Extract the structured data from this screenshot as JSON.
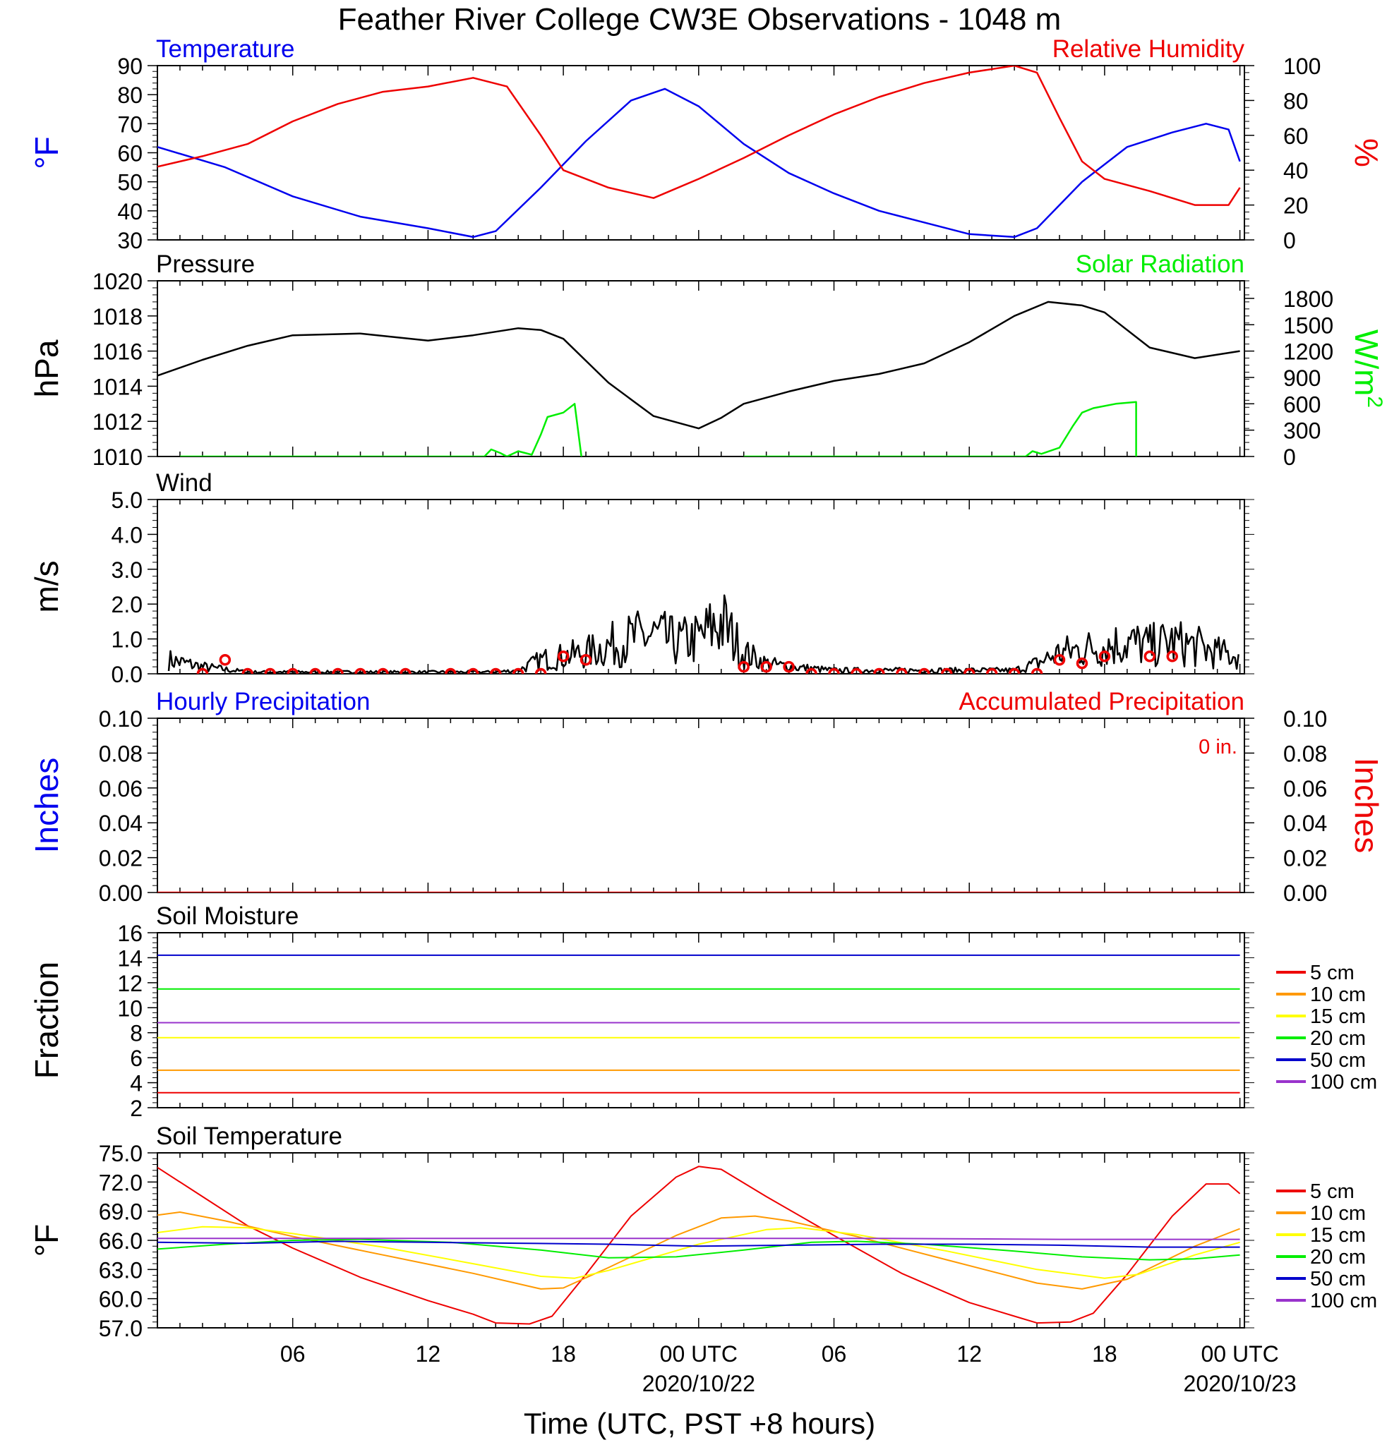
{
  "title": "Feather River College CW3E Observations - 1048 m",
  "colors": {
    "blue": "#0000ee",
    "red": "#ee0000",
    "green": "#00ee00",
    "black": "#000000"
  },
  "chart_data": [
    {
      "type": "line",
      "left_title": "Temperature",
      "right_title": "Relative Humidity",
      "ylabel": "°F",
      "ylabel_right": "%",
      "ylim": [
        30,
        90
      ],
      "ylim_right": [
        0,
        100
      ],
      "yticks": [
        "30",
        "40",
        "50",
        "60",
        "70",
        "80",
        "90"
      ],
      "yticks_right": [
        "0",
        "20",
        "40",
        "60",
        "80",
        "100"
      ],
      "series": [
        {
          "axis": "left",
          "color": "#0000ee",
          "x": [
            0,
            3,
            6,
            9,
            12,
            14,
            15,
            17,
            19,
            21,
            22.5,
            24,
            26,
            28,
            30,
            32,
            34,
            36,
            38,
            39,
            41,
            43,
            45,
            46.5,
            47.5,
            48
          ],
          "y": [
            62,
            55,
            45,
            38,
            34,
            31,
            33,
            48,
            64,
            78,
            82,
            76,
            63,
            53,
            46,
            40,
            36,
            32,
            31,
            34,
            50,
            62,
            67,
            70,
            68,
            57
          ]
        },
        {
          "axis": "right",
          "color": "#ee0000",
          "x": [
            0,
            2,
            4,
            6,
            8,
            10,
            12,
            14,
            15.5,
            17,
            18,
            20,
            22,
            24,
            26,
            28,
            30,
            32,
            34,
            36,
            38,
            39,
            40,
            41,
            42,
            44,
            46,
            47.5,
            48
          ],
          "y": [
            42,
            48,
            55,
            68,
            78,
            85,
            88,
            93,
            88,
            60,
            40,
            30,
            24,
            35,
            47,
            60,
            72,
            82,
            90,
            96,
            100,
            96,
            70,
            45,
            35,
            28,
            20,
            20,
            30
          ]
        }
      ]
    },
    {
      "type": "line",
      "left_title": "Pressure",
      "right_title": "Solar Radiation",
      "ylabel": "hPa",
      "ylabel_right": "W/m",
      "ylabel_right_sup": "2",
      "ylim": [
        1010,
        1020
      ],
      "ylim_right": [
        0,
        2000
      ],
      "yticks": [
        "1010",
        "1012",
        "1014",
        "1016",
        "1018",
        "1020"
      ],
      "yticks_right": [
        "0",
        "300",
        "600",
        "900",
        "1200",
        "1500",
        "1800"
      ],
      "series": [
        {
          "axis": "left",
          "color": "#000000",
          "x": [
            0,
            2,
            4,
            6,
            9,
            12,
            14,
            16,
            17,
            18,
            20,
            22,
            24,
            25,
            26,
            28,
            30,
            32,
            34,
            36,
            38,
            39.5,
            41,
            42,
            44,
            46,
            48
          ],
          "y": [
            1014.6,
            1015.5,
            1016.3,
            1016.9,
            1017.0,
            1016.6,
            1016.9,
            1017.3,
            1017.2,
            1016.7,
            1014.2,
            1012.3,
            1011.6,
            1012.2,
            1013.0,
            1013.7,
            1014.3,
            1014.7,
            1015.3,
            1016.5,
            1018.0,
            1018.8,
            1018.6,
            1018.2,
            1016.2,
            1015.6,
            1016.0
          ]
        },
        {
          "axis": "right",
          "color": "#00ee00",
          "x": [
            1,
            14.5,
            14.8,
            15.2,
            15.5,
            16,
            16.6,
            17,
            17.3,
            18,
            18.5,
            18.8,
            17.5,
            17.5,
            17.5,
            17.5,
            17.5,
            17.5,
            17.5,
            17.5,
            17.5,
            17.5,
            17.5,
            17.5,
            17.5,
            17.5,
            17.5,
            17.5,
            17.5,
            17.5
          ],
          "y": [
            0,
            0,
            80,
            40,
            0,
            60,
            20,
            250,
            450,
            500,
            600,
            0,
            null,
            null,
            null,
            null,
            null,
            null,
            null,
            null,
            null,
            null,
            null,
            null,
            null,
            null,
            null,
            null,
            null,
            null
          ]
        },
        {
          "axis": "right",
          "color": "#00ee00",
          "x": [
            26,
            38.5,
            38.8,
            39.2,
            40,
            40.6,
            41,
            41.5,
            42.5,
            43.4,
            43.4
          ],
          "y": [
            0,
            0,
            60,
            30,
            100,
            350,
            500,
            550,
            600,
            620,
            0
          ]
        }
      ]
    },
    {
      "type": "line",
      "left_title": "Wind",
      "ylabel": "m/s",
      "ylim": [
        0,
        5
      ],
      "yticks": [
        "0.0",
        "1.0",
        "2.0",
        "3.0",
        "4.0",
        "5.0"
      ],
      "series": [
        {
          "name": "",
          "axis": "left",
          "color": "#000000",
          "style": "noisy",
          "x": [
            0.5,
            2,
            4,
            6,
            8,
            10,
            12,
            15,
            16,
            17,
            18,
            19,
            20,
            21,
            22,
            23,
            24,
            25,
            26,
            27,
            28,
            30,
            32,
            34,
            36,
            38,
            39,
            40,
            41,
            42,
            43,
            44,
            45,
            46,
            47,
            48
          ],
          "y": [
            0.4,
            0.2,
            0.05,
            0.05,
            0.05,
            0.05,
            0.05,
            0.05,
            0.1,
            0.4,
            0.5,
            0.6,
            0.8,
            1.0,
            1.1,
            0.9,
            1.0,
            1.5,
            0.6,
            0.3,
            0.2,
            0.1,
            0.1,
            0.1,
            0.1,
            0.1,
            0.3,
            0.6,
            0.7,
            0.8,
            0.9,
            0.8,
            0.9,
            0.8,
            0.6,
            0.5
          ]
        }
      ],
      "wind_circles_x": [
        2,
        3,
        4,
        5,
        6,
        7,
        8,
        9,
        10,
        11,
        13,
        14,
        15,
        16,
        17,
        18,
        19,
        26,
        27,
        28,
        29,
        30,
        31,
        32,
        33,
        34,
        35,
        36,
        37,
        38,
        39,
        40,
        41,
        42,
        44,
        45
      ],
      "wind_circles_y": [
        0,
        0.4,
        0,
        0,
        0,
        0,
        0,
        0,
        0,
        0,
        0,
        0,
        0,
        0,
        0,
        0.5,
        0.4,
        0.2,
        0.2,
        0.2,
        0,
        0,
        0,
        0,
        0,
        0,
        0,
        0,
        0,
        0,
        0,
        0.4,
        0.3,
        0.5,
        0.5,
        0.5
      ]
    },
    {
      "type": "line",
      "left_title": "Hourly Precipitation",
      "right_title": "Accumulated Precipitation",
      "annotation": "0 in.",
      "ylabel": "Inches",
      "ylabel_right": "Inches",
      "ylim": [
        0,
        0.1
      ],
      "ylim_right": [
        0,
        0.1
      ],
      "yticks": [
        "0.00",
        "0.02",
        "0.04",
        "0.06",
        "0.08",
        "0.10"
      ],
      "yticks_right": [
        "0.00",
        "0.02",
        "0.04",
        "0.06",
        "0.08",
        "0.10"
      ],
      "series": [
        {
          "axis": "right",
          "color": "#ee0000",
          "x": [
            0,
            48
          ],
          "y": [
            0,
            0
          ]
        }
      ]
    },
    {
      "type": "line",
      "left_title": "Soil Moisture",
      "ylabel": "Fraction",
      "ylim": [
        2,
        16
      ],
      "yticks": [
        "2",
        "4",
        "6",
        "8",
        "10",
        "12",
        "14",
        "16"
      ],
      "legend": [
        "5 cm",
        "10 cm",
        "15 cm",
        "20 cm",
        "50 cm",
        "100 cm"
      ],
      "legend_colors": [
        "#ee0000",
        "#ff9900",
        "#ffff00",
        "#00ee00",
        "#0000cc",
        "#9933cc"
      ],
      "series": [
        {
          "name": "5 cm",
          "color": "#ee0000",
          "x": [
            0,
            48
          ],
          "y": [
            3.2,
            3.2
          ]
        },
        {
          "name": "10 cm",
          "color": "#ff9900",
          "x": [
            0,
            48
          ],
          "y": [
            5.0,
            5.0
          ]
        },
        {
          "name": "15 cm",
          "color": "#ffff00",
          "x": [
            0,
            48
          ],
          "y": [
            7.6,
            7.6
          ]
        },
        {
          "name": "20 cm",
          "color": "#00ee00",
          "x": [
            0,
            48
          ],
          "y": [
            11.5,
            11.5
          ]
        },
        {
          "name": "50 cm",
          "color": "#0000cc",
          "x": [
            0,
            48
          ],
          "y": [
            14.2,
            14.2
          ]
        },
        {
          "name": "100 cm",
          "color": "#9933cc",
          "x": [
            0,
            48
          ],
          "y": [
            8.8,
            8.8
          ]
        }
      ]
    },
    {
      "type": "line",
      "left_title": "Soil Temperature",
      "ylabel": "°F",
      "ylim": [
        57,
        75
      ],
      "yticks": [
        "57.0",
        "60.0",
        "63.0",
        "66.0",
        "69.0",
        "72.0",
        "75.0"
      ],
      "legend": [
        "5 cm",
        "10 cm",
        "15 cm",
        "20 cm",
        "50 cm",
        "100 cm"
      ],
      "legend_colors": [
        "#ee0000",
        "#ff9900",
        "#ffff00",
        "#00ee00",
        "#0000cc",
        "#9933cc"
      ],
      "series": [
        {
          "name": "5 cm",
          "color": "#ee0000",
          "x": [
            0,
            2,
            4,
            6,
            9,
            12,
            14,
            15,
            16.5,
            17.5,
            19,
            21,
            23,
            24,
            25,
            27,
            30,
            33,
            36,
            38,
            39,
            40.5,
            41.5,
            43,
            45,
            46.5,
            47.5,
            48
          ],
          "y": [
            73.5,
            70.5,
            67.5,
            65.2,
            62.2,
            59.8,
            58.4,
            57.5,
            57.4,
            58.2,
            62.5,
            68.5,
            72.5,
            73.6,
            73.3,
            70.5,
            66.5,
            62.6,
            59.6,
            58.2,
            57.5,
            57.6,
            58.5,
            62.5,
            68.5,
            71.8,
            71.8,
            70.8
          ]
        },
        {
          "name": "10 cm",
          "color": "#ff9900",
          "x": [
            0,
            1,
            3,
            6,
            10,
            14,
            17,
            18,
            20,
            23,
            25,
            26.5,
            28,
            31,
            35,
            39,
            41,
            43,
            46,
            48
          ],
          "y": [
            68.6,
            68.9,
            68.0,
            66.4,
            64.5,
            62.6,
            61.0,
            61.1,
            63.2,
            66.5,
            68.3,
            68.5,
            68.0,
            66.4,
            64.0,
            61.6,
            61.0,
            62.0,
            65.4,
            67.2
          ]
        },
        {
          "name": "15 cm",
          "color": "#ffff00",
          "x": [
            0,
            2,
            4,
            6,
            10,
            14,
            17,
            18.5,
            20,
            24,
            27,
            28.5,
            31,
            35,
            39,
            42,
            43.5,
            46,
            48
          ],
          "y": [
            66.8,
            67.4,
            67.3,
            66.7,
            65.3,
            63.6,
            62.3,
            62.1,
            62.9,
            65.6,
            67.1,
            67.3,
            66.6,
            64.9,
            63.0,
            62.1,
            62.5,
            64.5,
            65.8
          ]
        },
        {
          "name": "20 cm",
          "color": "#00ee00",
          "x": [
            0,
            3,
            6,
            9,
            13,
            17,
            20,
            23,
            26,
            29,
            31,
            34,
            38,
            41,
            44,
            46,
            48
          ],
          "y": [
            65.1,
            65.6,
            66.0,
            66.1,
            65.8,
            65.0,
            64.2,
            64.3,
            65.0,
            65.8,
            65.9,
            65.6,
            64.9,
            64.3,
            64.0,
            64.1,
            64.5
          ]
        },
        {
          "name": "50 cm",
          "color": "#0000cc",
          "x": [
            0,
            4,
            8,
            12,
            16,
            20,
            24,
            28,
            32,
            36,
            40,
            44,
            48
          ],
          "y": [
            65.8,
            65.7,
            65.9,
            65.8,
            65.7,
            65.6,
            65.4,
            65.5,
            65.6,
            65.6,
            65.5,
            65.3,
            65.3
          ]
        },
        {
          "name": "100 cm",
          "color": "#9933cc",
          "x": [
            0,
            8,
            16,
            24,
            32,
            40,
            48
          ],
          "y": [
            66.2,
            66.2,
            66.2,
            66.2,
            66.2,
            66.1,
            66.1
          ]
        }
      ]
    }
  ],
  "time_axis": {
    "tick_labels": [
      "06",
      "12",
      "18",
      "00 UTC",
      "06",
      "12",
      "18",
      "00 UTC"
    ],
    "tick_hours": [
      6,
      12,
      18,
      24,
      30,
      36,
      42,
      48
    ],
    "date_labels": [
      "2020/10/22",
      "2020/10/23"
    ],
    "date_hours": [
      24,
      48
    ],
    "xlabel": "Time (UTC, PST +8 hours)",
    "xlim_hours": [
      0,
      48.2
    ]
  }
}
